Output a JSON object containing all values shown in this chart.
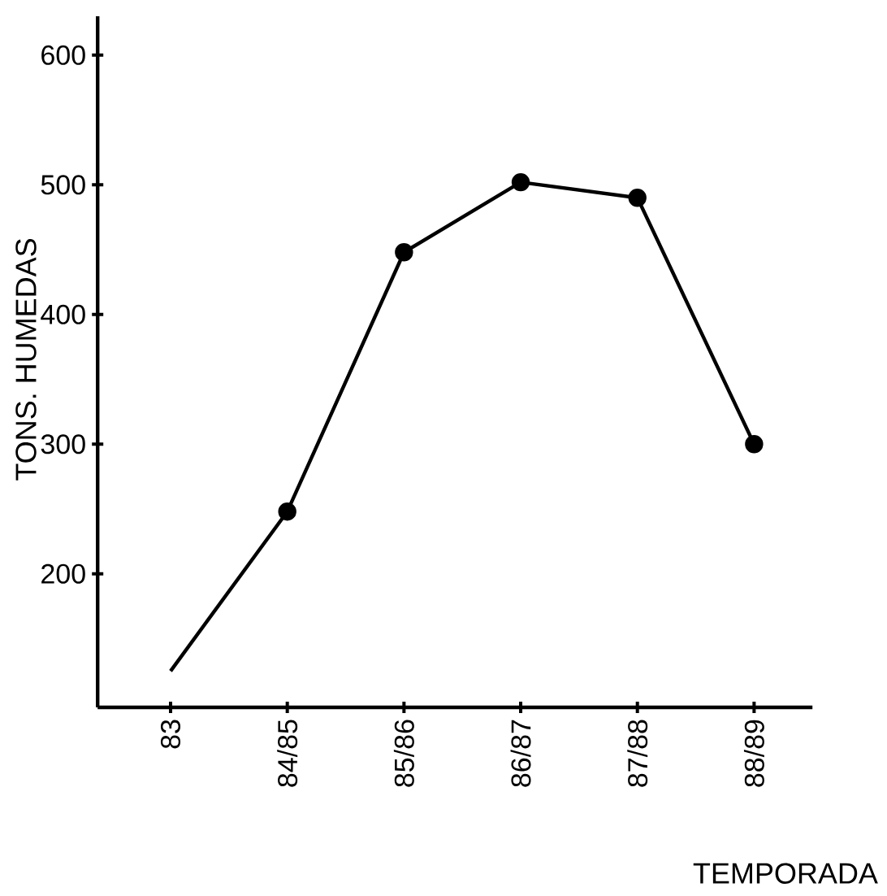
{
  "chart_data": {
    "type": "line",
    "xlabel": "TEMPORADA",
    "ylabel": "TONS.  HUMEDAS",
    "categories": [
      "83",
      "84/85",
      "85/86",
      "86/87",
      "87/88",
      "88/89"
    ],
    "series": [
      {
        "color": "#000000",
        "values": [
          125,
          248,
          448,
          502,
          490,
          300
        ]
      }
    ],
    "ylim": [
      97,
      630
    ],
    "yticks": [
      200,
      300,
      400,
      500,
      600
    ],
    "marker": "circle",
    "line_style": "solid",
    "grid": false
  }
}
